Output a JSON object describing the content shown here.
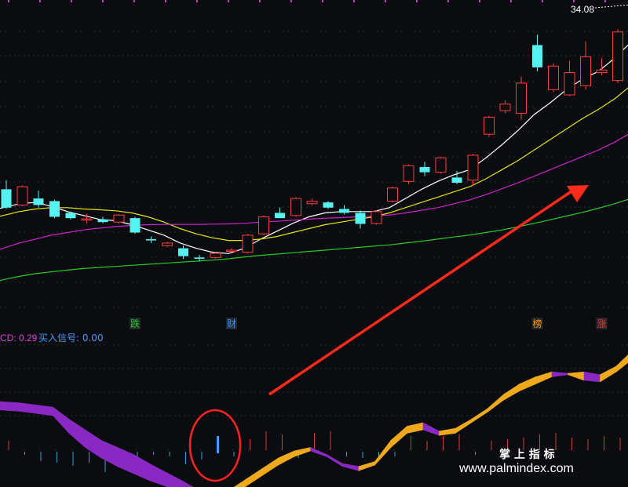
{
  "chart_data": {
    "type": "candlestick",
    "last_price_label": "34.08",
    "candles": [
      {
        "open": 27.1,
        "high": 27.45,
        "low": 26.35,
        "close": 26.4
      },
      {
        "open": 26.5,
        "high": 27.25,
        "low": 26.45,
        "close": 27.2
      },
      {
        "open": 26.75,
        "high": 27.05,
        "low": 26.4,
        "close": 26.5
      },
      {
        "open": 26.65,
        "high": 26.7,
        "low": 26.0,
        "close": 26.05
      },
      {
        "open": 26.2,
        "high": 26.25,
        "low": 25.95,
        "close": 26.0
      },
      {
        "open": 25.95,
        "high": 26.15,
        "low": 25.8,
        "close": 25.97
      },
      {
        "open": 25.95,
        "high": 26.05,
        "low": 25.8,
        "close": 25.85
      },
      {
        "open": 25.85,
        "high": 26.15,
        "low": 25.8,
        "close": 26.12
      },
      {
        "open": 26.0,
        "high": 26.05,
        "low": 25.4,
        "close": 25.45
      },
      {
        "open": 25.2,
        "high": 25.3,
        "low": 25.05,
        "close": 25.15
      },
      {
        "open": 24.95,
        "high": 25.1,
        "low": 24.9,
        "close": 25.05
      },
      {
        "open": 24.85,
        "high": 24.95,
        "low": 24.45,
        "close": 24.55
      },
      {
        "open": 24.5,
        "high": 24.6,
        "low": 24.35,
        "close": 24.45
      },
      {
        "open": 24.5,
        "high": 24.72,
        "low": 24.45,
        "close": 24.66
      },
      {
        "open": 24.75,
        "high": 24.85,
        "low": 24.7,
        "close": 24.78
      },
      {
        "open": 24.7,
        "high": 25.4,
        "low": 24.65,
        "close": 25.35
      },
      {
        "open": 25.4,
        "high": 26.1,
        "low": 25.35,
        "close": 26.05
      },
      {
        "open": 26.2,
        "high": 26.4,
        "low": 26.0,
        "close": 26.0
      },
      {
        "open": 26.1,
        "high": 26.8,
        "low": 26.05,
        "close": 26.75
      },
      {
        "open": 26.55,
        "high": 26.75,
        "low": 26.5,
        "close": 26.65
      },
      {
        "open": 26.6,
        "high": 26.65,
        "low": 26.35,
        "close": 26.4
      },
      {
        "open": 26.35,
        "high": 26.5,
        "low": 26.15,
        "close": 26.2
      },
      {
        "open": 26.2,
        "high": 26.3,
        "low": 25.6,
        "close": 25.78
      },
      {
        "open": 25.8,
        "high": 26.3,
        "low": 25.75,
        "close": 26.25
      },
      {
        "open": 26.65,
        "high": 27.2,
        "low": 26.6,
        "close": 27.15
      },
      {
        "open": 27.4,
        "high": 28.05,
        "low": 27.3,
        "close": 28.0
      },
      {
        "open": 27.95,
        "high": 28.15,
        "low": 27.6,
        "close": 27.75
      },
      {
        "open": 27.75,
        "high": 28.35,
        "low": 27.7,
        "close": 28.3
      },
      {
        "open": 27.55,
        "high": 27.8,
        "low": 27.3,
        "close": 27.35
      },
      {
        "open": 27.45,
        "high": 28.45,
        "low": 27.25,
        "close": 28.4
      },
      {
        "open": 29.2,
        "high": 29.9,
        "low": 29.1,
        "close": 29.85
      },
      {
        "open": 30.1,
        "high": 30.5,
        "low": 30.0,
        "close": 30.35
      },
      {
        "open": 30.0,
        "high": 31.4,
        "low": 29.75,
        "close": 31.15
      },
      {
        "open": 32.6,
        "high": 33.0,
        "low": 31.6,
        "close": 31.75
      },
      {
        "open": 30.9,
        "high": 31.9,
        "low": 30.8,
        "close": 31.8
      },
      {
        "open": 30.7,
        "high": 32.0,
        "low": 30.65,
        "close": 31.55
      },
      {
        "open": 31.05,
        "high": 32.75,
        "low": 30.9,
        "close": 32.15
      },
      {
        "open": 31.55,
        "high": 32.1,
        "low": 31.45,
        "close": 31.65
      },
      {
        "open": 31.25,
        "high": 33.2,
        "low": 31.15,
        "close": 33.1
      },
      {
        "open": 33.1,
        "high": 34.25,
        "low": 33.05,
        "close": 34.08
      }
    ],
    "moving_averages": [
      {
        "color": "#ffffff",
        "values": [
          26.4,
          26.55,
          26.6,
          26.45,
          26.25,
          26.1,
          25.95,
          25.9,
          25.75,
          25.55,
          25.35,
          25.05,
          24.85,
          24.7,
          24.65,
          24.85,
          25.2,
          25.5,
          25.8,
          26.05,
          26.2,
          26.25,
          26.25,
          26.25,
          26.4,
          26.75,
          27.1,
          27.4,
          27.65,
          27.85,
          28.3,
          28.8,
          29.35,
          29.95,
          30.4,
          30.9,
          31.3,
          31.6,
          32.1,
          32.7
        ]
      },
      {
        "color": "#e6e600",
        "values": [
          26.1,
          26.25,
          26.35,
          26.4,
          26.4,
          26.35,
          26.32,
          26.28,
          26.2,
          26.05,
          25.85,
          25.6,
          25.4,
          25.25,
          25.15,
          25.15,
          25.2,
          25.3,
          25.45,
          25.6,
          25.75,
          25.85,
          25.95,
          26.05,
          26.2,
          26.4,
          26.6,
          26.8,
          27.0,
          27.2,
          27.5,
          27.85,
          28.2,
          28.6,
          29.0,
          29.4,
          29.8,
          30.15,
          30.55,
          31.05
        ]
      },
      {
        "color": "#cc22cc",
        "values": [
          24.85,
          25.05,
          25.2,
          25.35,
          25.45,
          25.55,
          25.62,
          25.68,
          25.72,
          25.75,
          25.76,
          25.76,
          25.76,
          25.77,
          25.78,
          25.8,
          25.85,
          25.88,
          25.92,
          25.96,
          26.0,
          26.02,
          26.05,
          26.08,
          26.12,
          26.2,
          26.3,
          26.4,
          26.55,
          26.7,
          26.9,
          27.12,
          27.35,
          27.6,
          27.85,
          28.1,
          28.35,
          28.6,
          28.9,
          29.25
        ]
      },
      {
        "color": "#22cc22",
        "values": [
          23.65,
          23.78,
          23.88,
          23.95,
          24.02,
          24.08,
          24.12,
          24.16,
          24.2,
          24.24,
          24.28,
          24.32,
          24.36,
          24.4,
          24.45,
          24.52,
          24.58,
          24.63,
          24.68,
          24.73,
          24.78,
          24.83,
          24.88,
          24.93,
          24.98,
          25.05,
          25.12,
          25.2,
          25.28,
          25.36,
          25.45,
          25.55,
          25.67,
          25.8,
          25.94,
          26.08,
          26.22,
          26.38,
          26.55,
          26.75
        ]
      }
    ],
    "event_markers": [
      {
        "index": 8,
        "text": "跌",
        "color": "#22cc22"
      },
      {
        "index": 14,
        "text": "财",
        "color": "#3399ff"
      },
      {
        "index": 33,
        "text": "榜",
        "color": "#ff9900"
      },
      {
        "index": 37,
        "text": "涨",
        "color": "#ff3333"
      }
    ],
    "indicator": {
      "label_main": "CD: 0.29",
      "label_signal": "买入信号: 0.00",
      "band_upper": [
        0.2,
        0.18,
        0.15,
        0.12,
        -0.05,
        -0.2,
        -0.35,
        -0.45,
        -0.55,
        -0.68,
        -0.8,
        -0.92,
        -1.05,
        -1.1,
        -1.05,
        -0.9,
        -0.75,
        -0.6,
        -0.5,
        -0.45,
        -0.55,
        -0.68,
        -0.72,
        -0.65,
        -0.35,
        -0.15,
        -0.1,
        -0.22,
        -0.18,
        -0.05,
        0.1,
        0.3,
        0.45,
        0.55,
        0.62,
        0.6,
        0.62,
        0.58,
        0.7,
        0.92
      ],
      "band_lower": [
        0.08,
        0.06,
        0.03,
        0.0,
        -0.25,
        -0.45,
        -0.6,
        -0.72,
        -0.82,
        -0.92,
        -1.0,
        -1.08,
        -1.15,
        -1.15,
        -1.1,
        -1.0,
        -0.85,
        -0.7,
        -0.58,
        -0.5,
        -0.58,
        -0.72,
        -0.78,
        -0.7,
        -0.45,
        -0.25,
        -0.2,
        -0.28,
        -0.25,
        -0.1,
        0.05,
        0.22,
        0.35,
        0.45,
        0.55,
        0.58,
        0.5,
        0.48,
        0.62,
        0.8
      ],
      "bars": [
        0.3,
        -0.1,
        -0.3,
        -0.35,
        -0.45,
        -0.35,
        -0.65,
        -0.4,
        -0.45,
        -0.1,
        -0.15,
        -0.4,
        -0.25,
        0.45,
        -0.15,
        0.35,
        0.6,
        0.5,
        -0.2,
        0.55,
        0.6,
        -0.15,
        -0.2,
        -0.15,
        -0.15,
        0.45,
        0.3,
        0.45,
        0.5,
        -0.1,
        0.3,
        0.35,
        0.4,
        0.5,
        0.55,
        0.4,
        0.35,
        0.45,
        0.4,
        0.5
      ],
      "signal_index": 13
    }
  },
  "watermark": {
    "line1": "掌 上 指 标",
    "line2": "www.palmindex.com"
  },
  "colors": {
    "up": "#ff3b3b",
    "down": "#55f2f2",
    "band_bull": "#f0a91a",
    "band_bear": "#8a28c4",
    "arrow": "#ff2a1a",
    "grid": "#2a2d36",
    "circle": "#ff2222"
  }
}
